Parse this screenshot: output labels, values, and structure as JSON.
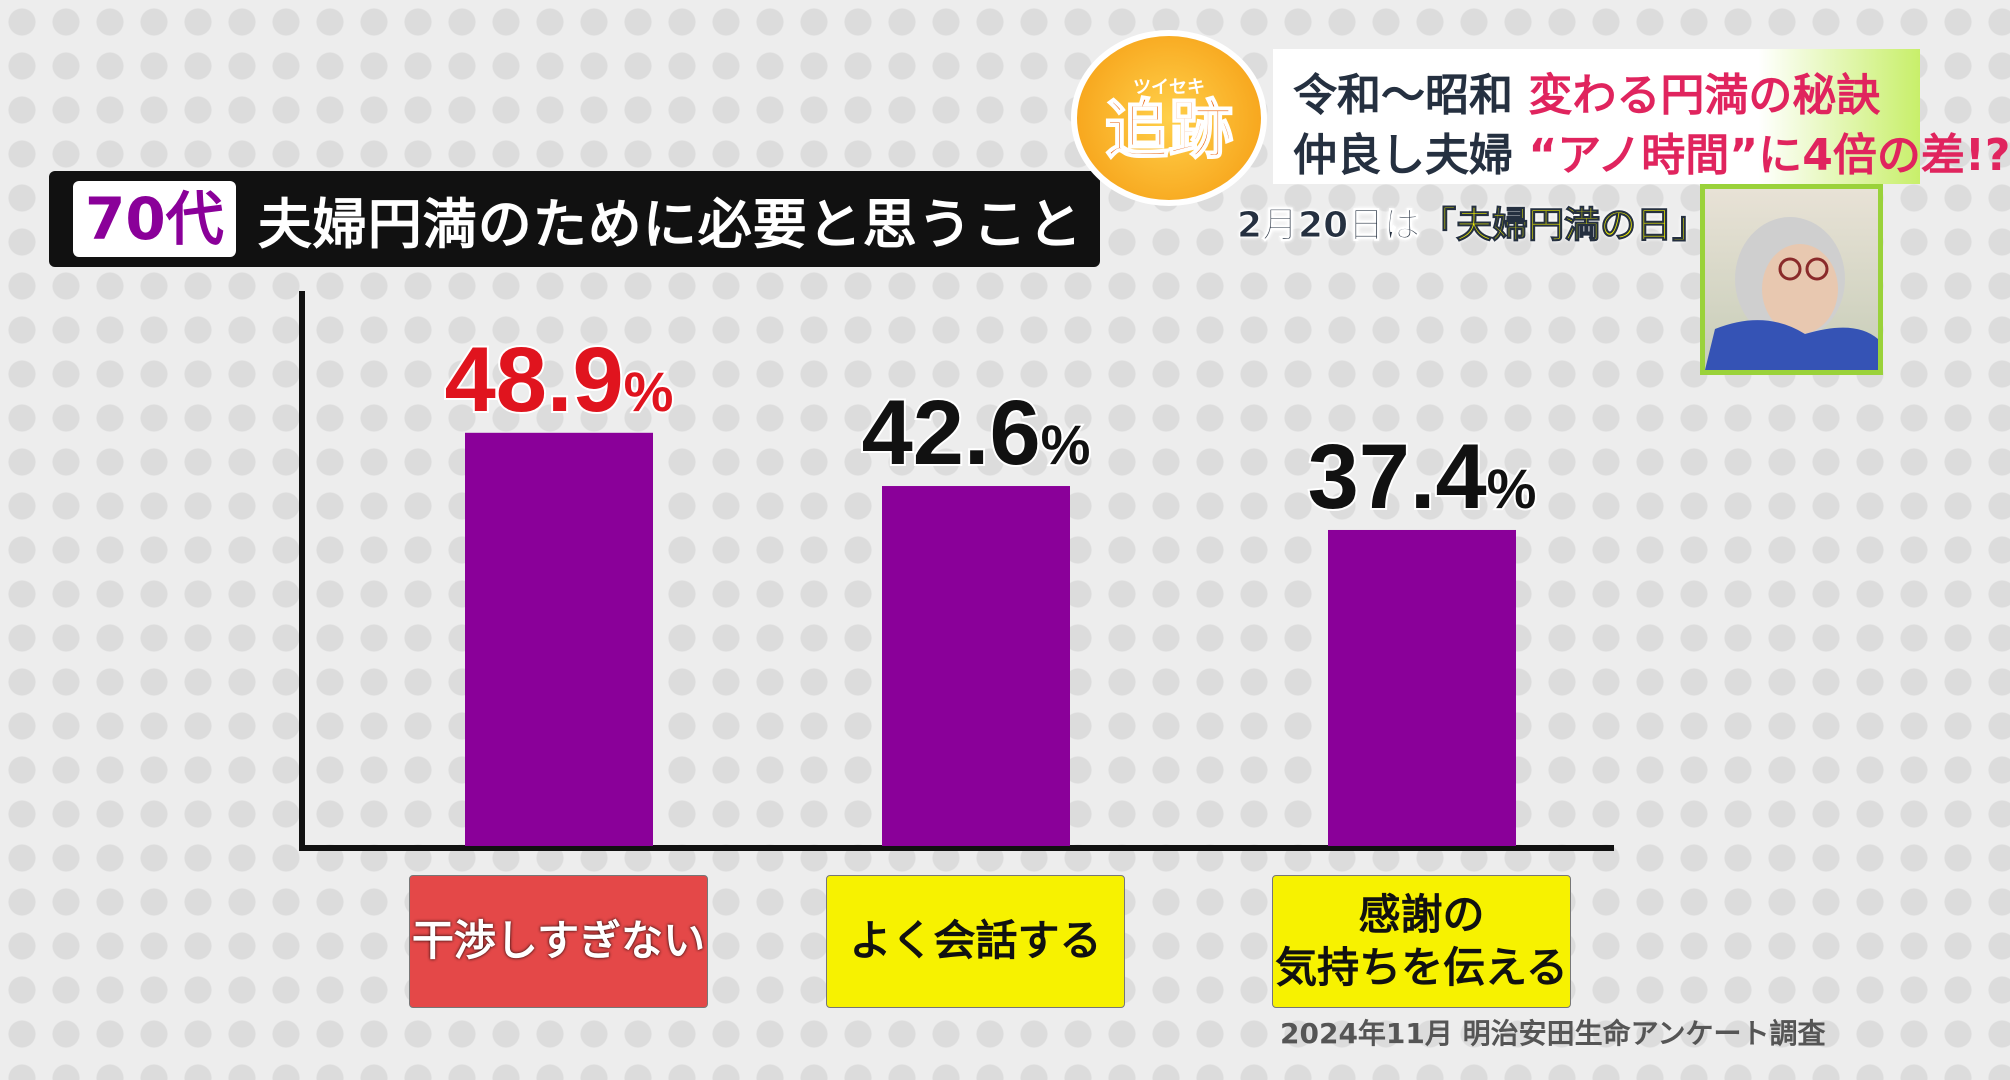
{
  "title": {
    "badge": "70代",
    "text": "夫婦円満のために必要と思うこと"
  },
  "header": {
    "line1_a": "令和〜昭和",
    "line1_b": "変わる円満の秘訣",
    "line2_a": "仲良し夫婦",
    "line2_b": "“アノ時間”に4倍の差!?",
    "date_a": "2月20日は",
    "date_b": "「夫婦円満の日」"
  },
  "logo": {
    "text": "追跡",
    "ruby": "ツイセキ"
  },
  "source": "2024年11月 明治安田生命アンケート調査",
  "colors": {
    "bar": "#8a0099",
    "highlight_label": "#e0141e",
    "box_red": "#e44848",
    "box_yellow": "#f7f200"
  },
  "chart_data": {
    "type": "bar",
    "title": "夫婦円満のために必要と思うこと",
    "categories": [
      "干渉しすぎない",
      "よく会話する",
      "感謝の気持ちを伝える"
    ],
    "category_lines": [
      [
        "干渉しすぎない"
      ],
      [
        "よく会話する"
      ],
      [
        "感謝の",
        "気持ちを伝える"
      ]
    ],
    "values": [
      48.9,
      42.6,
      37.4
    ],
    "labels": [
      "48.9",
      "42.6",
      "37.4"
    ],
    "unit": "%",
    "ylim": [
      0,
      54
    ],
    "grid": false
  }
}
